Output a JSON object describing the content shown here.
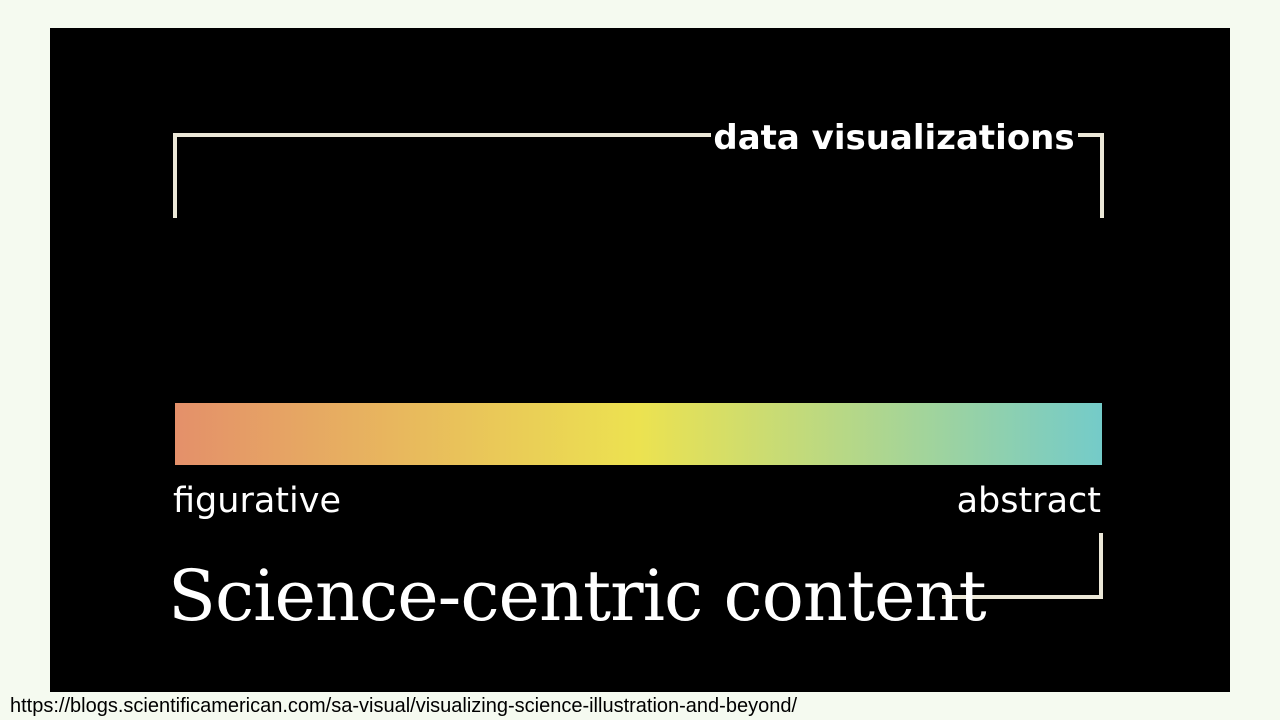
{
  "diagram": {
    "top_label": "data visualizations",
    "spectrum": {
      "start_color": "#e4906a",
      "mid_color": "#ece250",
      "end_color": "#74cbc9",
      "start_label": "figurative",
      "end_label": "abstract"
    },
    "bottom_label": "Science-centric content"
  },
  "footer": {
    "url": "https://blogs.scientificamerican.com/sa-visual/visualizing-science-illustration-and-beyond/"
  }
}
